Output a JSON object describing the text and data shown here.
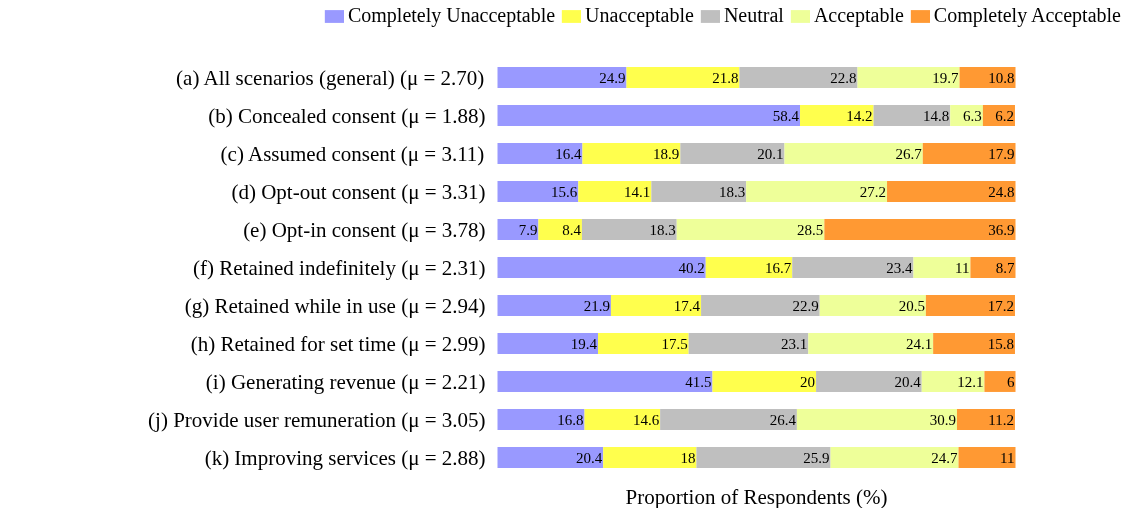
{
  "chart_data": {
    "type": "bar",
    "orientation": "horizontal",
    "stacked": true,
    "xlabel": "Proportion of Respondents (%)",
    "categories": [
      "(a) All scenarios (general) (μ = 2.70)",
      "(b) Concealed consent (μ = 1.88)",
      "(c) Assumed consent (μ = 3.11)",
      "(d) Opt-out consent (μ = 3.31)",
      "(e) Opt-in consent (μ = 3.78)",
      "(f) Retained indefinitely (μ = 2.31)",
      "(g) Retained while in use (μ = 2.94)",
      "(h) Retained for set time (μ = 2.99)",
      "(i) Generating revenue (μ = 2.21)",
      "(j) Provide user remuneration (μ = 3.05)",
      "(k) Improving services (μ = 2.88)"
    ],
    "series": [
      {
        "name": "Completely Unacceptable",
        "color": "#9999ff",
        "values": [
          24.9,
          58.4,
          16.4,
          15.6,
          7.9,
          40.2,
          21.9,
          19.4,
          41.5,
          16.8,
          20.4
        ]
      },
      {
        "name": "Unacceptable",
        "color": "#ffff4d",
        "values": [
          21.8,
          14.2,
          18.9,
          14.1,
          8.4,
          16.7,
          17.4,
          17.5,
          20,
          14.6,
          18
        ]
      },
      {
        "name": "Neutral",
        "color": "#bfbfbf",
        "values": [
          22.8,
          14.8,
          20.1,
          18.3,
          18.3,
          23.4,
          22.9,
          23.1,
          20.4,
          26.4,
          25.9
        ]
      },
      {
        "name": "Acceptable",
        "color": "#eeff99",
        "values": [
          19.7,
          6.3,
          26.7,
          27.2,
          28.5,
          11,
          20.5,
          24.1,
          12.1,
          30.9,
          24.7
        ]
      },
      {
        "name": "Completely Acceptable",
        "color": "#ff9933",
        "values": [
          10.8,
          6.2,
          17.9,
          24.8,
          36.9,
          8.7,
          17.2,
          15.8,
          6,
          11.2,
          11
        ]
      }
    ],
    "data_labels": true,
    "legend": "top"
  }
}
